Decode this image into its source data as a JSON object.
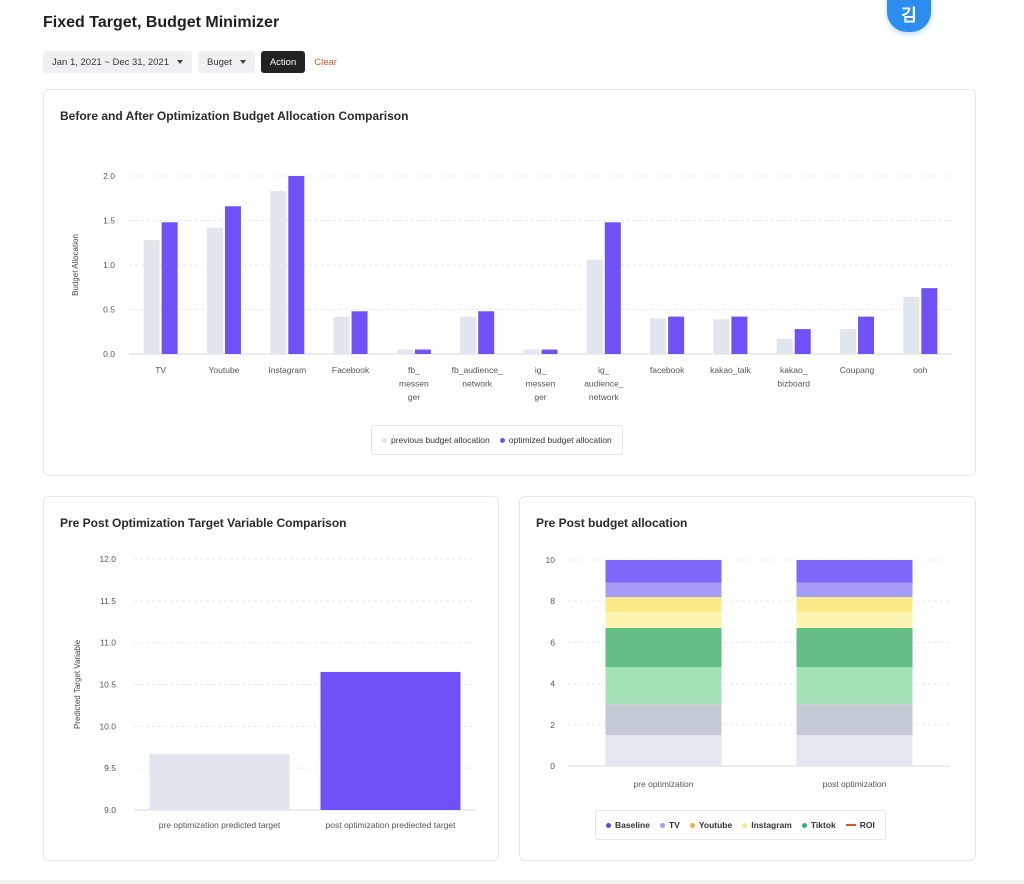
{
  "header": {
    "title": "Fixed Target, Budget Minimizer",
    "avatar_text": "김",
    "date_range": "Jan 1, 2021 ~ Dec 31, 2021",
    "budget_filter": "Buget",
    "action_label": "Action",
    "clear_label": "Clear"
  },
  "colors": {
    "previous": "#e1e5ed",
    "optimized": "#7051f8",
    "accent_clear": "#e5502c"
  },
  "panels": {
    "allocation": {
      "title": "Before and After Optimization Budget Allocation Comparison"
    },
    "target": {
      "title": "Pre Post Optimization Target Variable Comparison"
    },
    "stacked": {
      "title": "Pre Post budget allocation"
    }
  },
  "chart_data": [
    {
      "type": "bar",
      "title": "Before and After Optimization Budget Allocation Comparison",
      "ylabel": "Budget Allocation",
      "xlabel": "",
      "ylim": [
        0,
        2.0
      ],
      "yticks": [
        "0.0",
        "0.5",
        "1.0",
        "1.5",
        "2.0"
      ],
      "grid": true,
      "legend_position": "bottom-center",
      "categories": [
        [
          "TV"
        ],
        [
          "Youtube"
        ],
        [
          "Instagram"
        ],
        [
          "Facebook"
        ],
        [
          "fb_",
          "messen",
          "ger"
        ],
        [
          "fb_audience_",
          "network"
        ],
        [
          "ig_",
          "messen",
          "ger"
        ],
        [
          "ig_",
          "audience_",
          "network"
        ],
        [
          "facebook"
        ],
        [
          "kakao_talk"
        ],
        [
          "kakao_",
          "bizboard"
        ],
        [
          "Coupang"
        ],
        [
          "ooh"
        ]
      ],
      "series": [
        {
          "name": "previous budget allocation",
          "color": "#e1e5ed",
          "values": [
            1.28,
            1.42,
            1.83,
            0.42,
            0.05,
            0.42,
            0.05,
            1.06,
            0.4,
            0.39,
            0.17,
            0.28,
            0.64
          ]
        },
        {
          "name": "optimized budget allocation",
          "color": "#7051f8",
          "values": [
            1.48,
            1.66,
            2.0,
            0.48,
            0.05,
            0.48,
            0.05,
            1.48,
            0.42,
            0.42,
            0.28,
            0.42,
            0.74
          ]
        }
      ]
    },
    {
      "type": "bar",
      "title": "Pre Post Optimization Target Variable Comparison",
      "ylabel": "Predicted Target Variable",
      "xlabel": "",
      "ylim": [
        9.0,
        12.0
      ],
      "yticks": [
        "9.0",
        "9.5",
        "10.0",
        "10.5",
        "11.0",
        "11.5",
        "12.0"
      ],
      "grid": true,
      "categories": [
        "pre optimization predicted target",
        "post optimization prediected target"
      ],
      "values": [
        9.67,
        10.65
      ],
      "colors": [
        "#e1e5ed",
        "#7051f8"
      ]
    },
    {
      "type": "bar",
      "stacked": true,
      "title": "Pre Post budget allocation",
      "ylim": [
        0,
        10
      ],
      "yticks": [
        "0",
        "2",
        "4",
        "6",
        "8",
        "10"
      ],
      "grid": true,
      "legend_position": "bottom-center",
      "categories": [
        "pre optimization",
        "post optimization"
      ],
      "segments": [
        {
          "color": "#e3e7ef",
          "values": [
            1.5,
            1.5
          ]
        },
        {
          "color": "#c3cad6",
          "values": [
            1.5,
            1.5
          ]
        },
        {
          "color": "#a4e2b8",
          "values": [
            1.8,
            1.8
          ]
        },
        {
          "color": "#63bd85",
          "values": [
            1.9,
            1.9
          ]
        },
        {
          "color": "#fcf4b0",
          "values": [
            0.8,
            0.8
          ]
        },
        {
          "color": "#fbe985",
          "values": [
            0.7,
            0.7
          ]
        },
        {
          "color": "#a59bf9",
          "values": [
            0.7,
            0.7
          ]
        },
        {
          "color": "#7f66f9",
          "values": [
            1.1,
            1.1
          ]
        }
      ],
      "legend": [
        {
          "name": "Baseline",
          "color": "#5b45e6",
          "marker": "dot"
        },
        {
          "name": "TV",
          "color": "#a59bf9",
          "marker": "dot"
        },
        {
          "name": "Youtube",
          "color": "#f2b13a",
          "marker": "dot"
        },
        {
          "name": "Instagram",
          "color": "#f7ea8a",
          "marker": "dot"
        },
        {
          "name": "Tiktok",
          "color": "#3cae6c",
          "marker": "dot"
        },
        {
          "name": "ROI",
          "color": "#e5502c",
          "marker": "line"
        }
      ]
    }
  ]
}
